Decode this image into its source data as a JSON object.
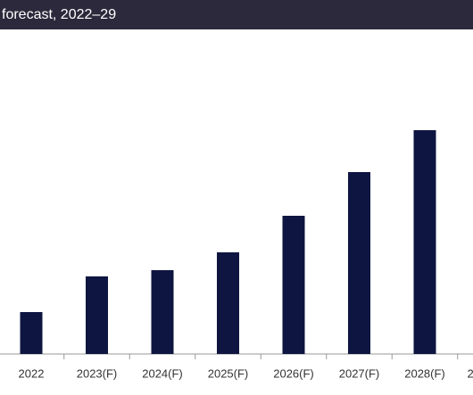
{
  "chart_data": {
    "type": "bar",
    "title": "forecast, 2022–29",
    "categories": [
      "2022",
      "2023(F)",
      "2024(F)",
      "2025(F)",
      "2026(F)",
      "2027(F)",
      "2028(F)",
      "2"
    ],
    "values": [
      47,
      87,
      94,
      114,
      155,
      204,
      251,
      null
    ],
    "color": "#0e1540",
    "ylim": [
      0,
      270
    ]
  }
}
